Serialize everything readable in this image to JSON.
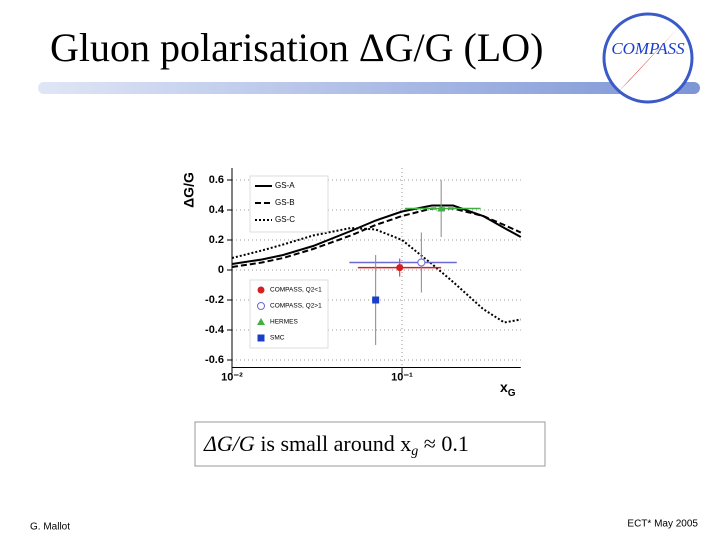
{
  "slide": {
    "title": "Gluon polarisation ΔG/G (LO)",
    "logo": "COMPASS",
    "caption": [
      "ΔG/G",
      " is small around x",
      "g",
      " ≈ 0.1"
    ],
    "footer_left": "G. Mallot",
    "footer_right": "ECT* May 2005"
  },
  "chart_data": {
    "type": "line",
    "log_x": true,
    "grid": true,
    "y_label": "ΔG/G",
    "x_label": "x",
    "x_label_sub": "G",
    "annotation": "LO",
    "xlim": [
      0.01,
      0.5
    ],
    "ylim": [
      -0.65,
      0.68
    ],
    "xticks": [
      {
        "value": 0.01,
        "label": "10⁻²"
      },
      {
        "value": 0.1,
        "label": "10⁻¹"
      }
    ],
    "yticks": [
      -0.6,
      -0.4,
      -0.2,
      0,
      0.2,
      0.4,
      0.6
    ],
    "x": [
      0.01,
      0.015,
      0.02,
      0.03,
      0.05,
      0.07,
      0.1,
      0.15,
      0.2,
      0.3,
      0.4,
      0.5
    ],
    "series": [
      {
        "name": "GS-A",
        "color": "#000000",
        "dash": "",
        "values": [
          0.04,
          0.07,
          0.1,
          0.16,
          0.26,
          0.33,
          0.39,
          0.43,
          0.43,
          0.36,
          0.28,
          0.22
        ]
      },
      {
        "name": "GS-B",
        "color": "#000000",
        "dash": "6 3",
        "values": [
          0.02,
          0.05,
          0.08,
          0.14,
          0.23,
          0.3,
          0.36,
          0.41,
          0.41,
          0.36,
          0.3,
          0.25
        ]
      },
      {
        "name": "GS-C",
        "color": "#000000",
        "dash": "2 2",
        "values": [
          0.08,
          0.13,
          0.17,
          0.23,
          0.28,
          0.27,
          0.2,
          0.04,
          -0.08,
          -0.26,
          -0.35,
          -0.33
        ]
      }
    ],
    "points": [
      {
        "name": "COMPASS, Q2<1",
        "color": "#d42020",
        "marker": "circle",
        "x": 0.097,
        "y": 0.016,
        "yerr": 0.06,
        "xmin": 0.055,
        "xmax": 0.17
      },
      {
        "name": "COMPASS, Q2>1",
        "color": "#6a6ad0",
        "marker": "open",
        "x": 0.13,
        "y": 0.05,
        "yerr": 0.2,
        "xmin": 0.049,
        "xmax": 0.21
      },
      {
        "name": "HERMES",
        "color": "#40b040",
        "marker": "triangle",
        "x": 0.17,
        "y": 0.41,
        "yerr": 0.19,
        "xmin": 0.104,
        "xmax": 0.29
      },
      {
        "name": "SMC",
        "color": "#1a3ec8",
        "marker": "square",
        "x": 0.07,
        "y": -0.2,
        "yerr": 0.3,
        "xmin": 0.07,
        "xmax": 0.07
      }
    ]
  }
}
